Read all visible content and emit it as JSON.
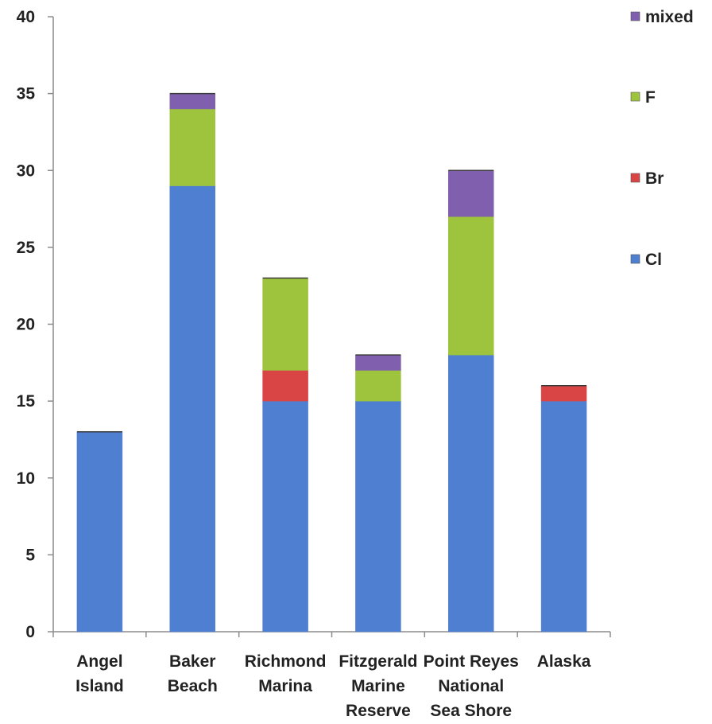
{
  "chart_data": {
    "type": "bar",
    "stacked": true,
    "categories": [
      [
        "Angel",
        "Island"
      ],
      [
        "Baker",
        "Beach"
      ],
      [
        "Richmond",
        "Marina"
      ],
      [
        "Fitzgerald",
        "Marine",
        "Reserve"
      ],
      [
        "Point Reyes",
        "National",
        "Sea Shore"
      ],
      [
        "Alaska"
      ]
    ],
    "series": [
      {
        "name": "Cl",
        "color": "#4f7fd0",
        "values": [
          13,
          29,
          15,
          15,
          18,
          15
        ]
      },
      {
        "name": "Br",
        "color": "#d94545",
        "values": [
          0,
          0,
          2,
          0,
          0,
          1
        ]
      },
      {
        "name": "F",
        "color": "#9dc43c",
        "values": [
          0,
          5,
          6,
          2,
          9,
          0
        ]
      },
      {
        "name": "mixed",
        "color": "#7f5fae",
        "values": [
          0,
          1,
          0,
          1,
          3,
          0
        ]
      }
    ],
    "legend_order": [
      "mixed",
      "F",
      "Br",
      "Cl"
    ],
    "ylim": [
      0,
      40
    ],
    "yticks": [
      0,
      5,
      10,
      15,
      20,
      25,
      30,
      35,
      40
    ],
    "title": "",
    "xlabel": "",
    "ylabel": "",
    "grid": false,
    "legend_position": "right"
  }
}
